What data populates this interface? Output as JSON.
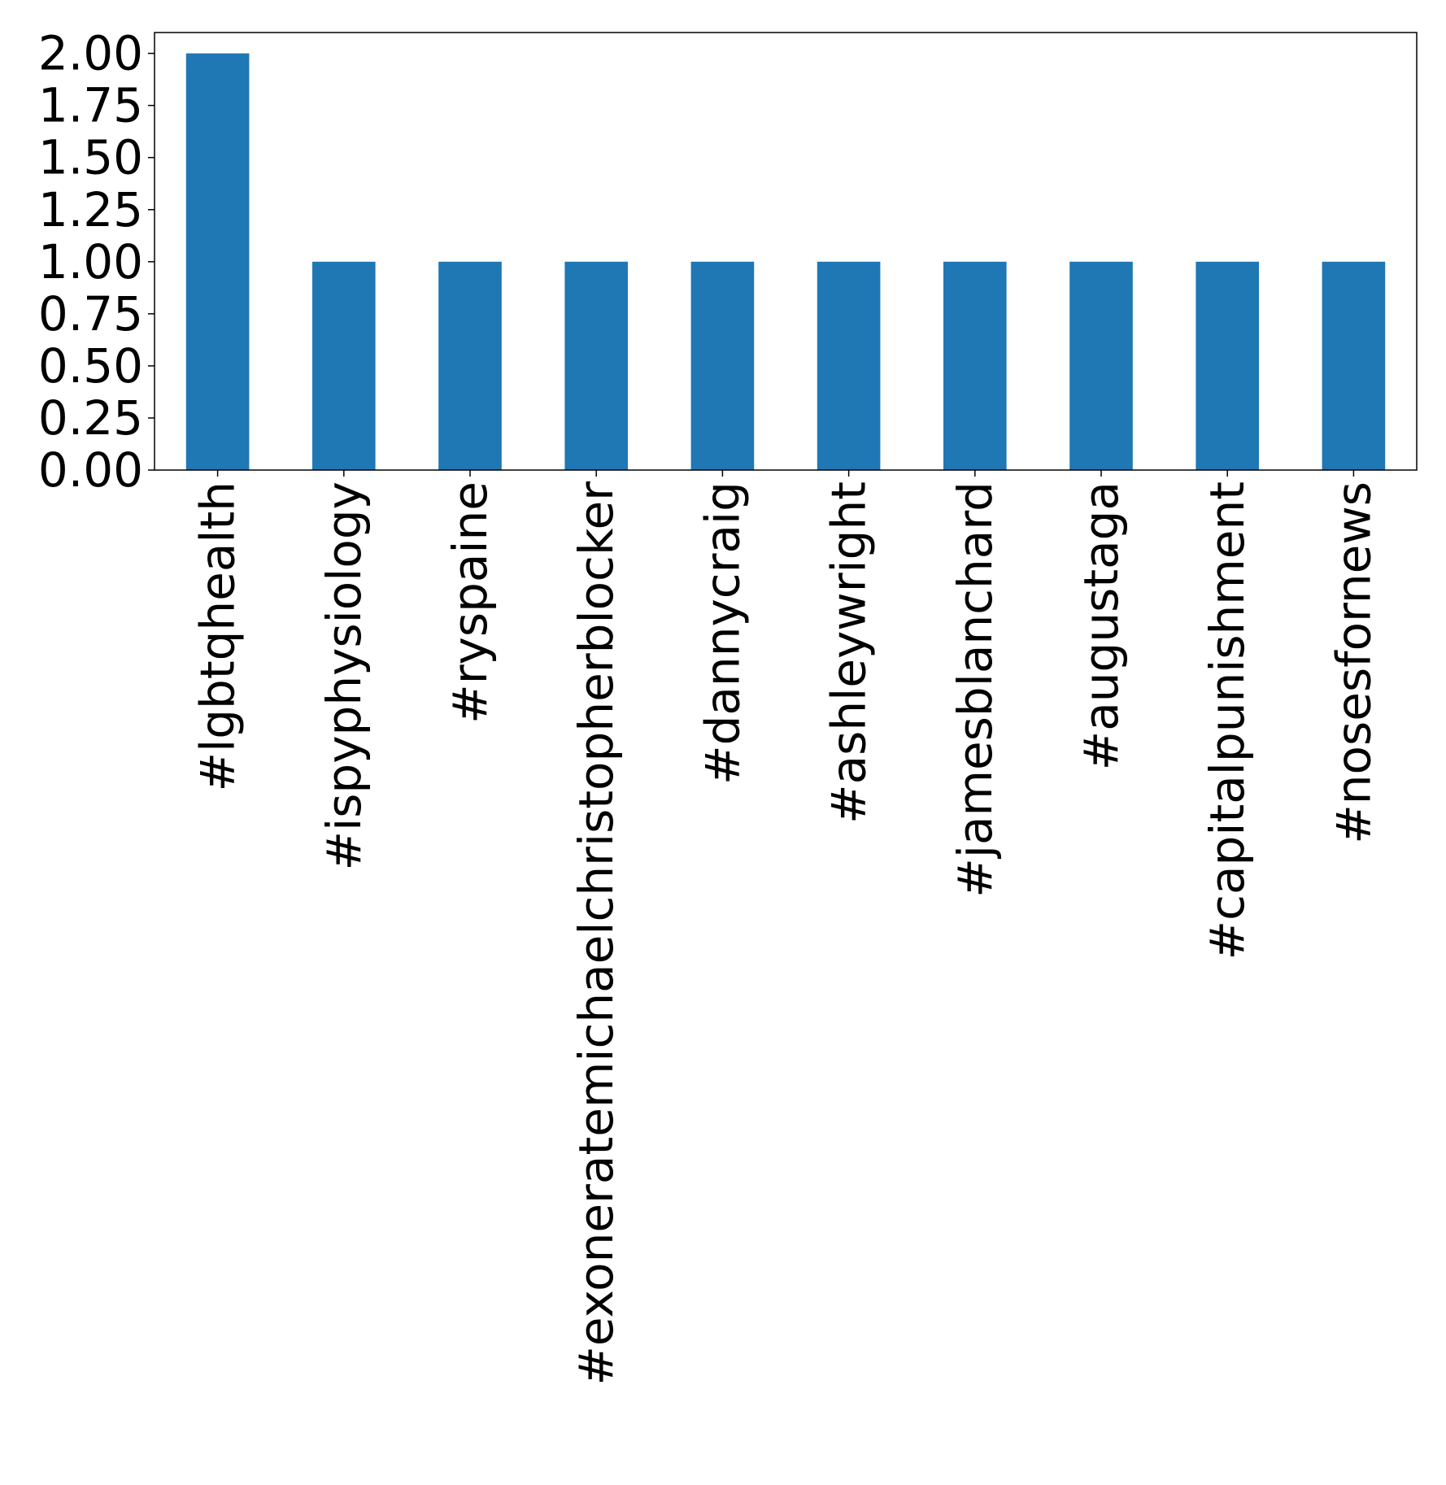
{
  "chart_data": {
    "type": "bar",
    "categories": [
      "#lgbtqhealth",
      "#ispyphysiology",
      "#ryspaine",
      "#exoneratemichaelchristopherblocker",
      "#dannycraig",
      "#ashleywright",
      "#jamesblanchard",
      "#augustaga",
      "#capitalpunishment",
      "#nosesfornews"
    ],
    "values": [
      2,
      1,
      1,
      1,
      1,
      1,
      1,
      1,
      1,
      1
    ],
    "ylim": [
      0,
      2.1
    ],
    "yticks": [
      "0.00",
      "0.25",
      "0.50",
      "0.75",
      "1.00",
      "1.25",
      "1.50",
      "1.75",
      "2.00"
    ],
    "bar_color": "#1f77b4",
    "grid": false,
    "title": "",
    "xlabel": "",
    "ylabel": ""
  }
}
